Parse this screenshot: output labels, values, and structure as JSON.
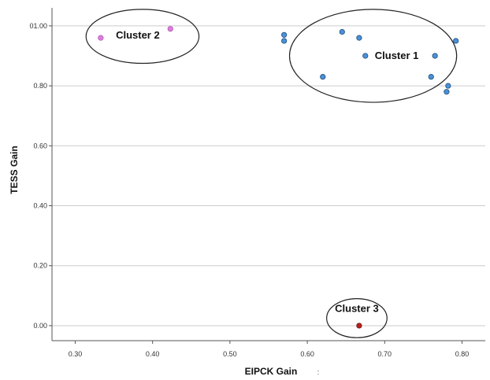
{
  "chart_data": {
    "type": "scatter",
    "title": "",
    "xlabel": "EIPCK Gain",
    "ylabel": "TESS Gain",
    "xlim": [
      0.27,
      0.83
    ],
    "ylim": [
      -0.05,
      1.06
    ],
    "x_ticks": [
      "0.30",
      "0.40",
      "0.50",
      "0.60",
      "0.70",
      "0.80"
    ],
    "y_ticks": [
      "0.00",
      "0.20",
      "0.40",
      "0.60",
      "0.80",
      "01.00"
    ],
    "grid": "horizontal",
    "stray_mark": ":",
    "series": [
      {
        "color": "#4a90d9",
        "stroke": "#1f4e79",
        "points": [
          {
            "x": 0.57,
            "y": 0.97
          },
          {
            "x": 0.57,
            "y": 0.95
          },
          {
            "x": 0.62,
            "y": 0.83
          },
          {
            "x": 0.645,
            "y": 0.98
          },
          {
            "x": 0.667,
            "y": 0.96
          },
          {
            "x": 0.675,
            "y": 0.9
          },
          {
            "x": 0.76,
            "y": 0.83
          },
          {
            "x": 0.765,
            "y": 0.9
          },
          {
            "x": 0.782,
            "y": 0.8
          },
          {
            "x": 0.78,
            "y": 0.78
          },
          {
            "x": 0.792,
            "y": 0.95
          }
        ]
      },
      {
        "color": "#e07be0",
        "stroke": "#b05ab0",
        "points": [
          {
            "x": 0.333,
            "y": 0.96
          },
          {
            "x": 0.423,
            "y": 0.99
          }
        ]
      },
      {
        "color": "#b22222",
        "stroke": "#7a1010",
        "points": [
          {
            "x": 0.667,
            "y": 0.0
          }
        ]
      }
    ],
    "annotations": [
      {
        "text": "Cluster 1",
        "cx": 0.685,
        "cy": 0.9,
        "rx": 0.108,
        "ry": 0.155
      },
      {
        "text": "Cluster 2",
        "cx": 0.387,
        "cy": 0.965,
        "rx": 0.073,
        "ry": 0.09
      },
      {
        "text": "Cluster 3",
        "cx": 0.664,
        "cy": 0.025,
        "rx": 0.039,
        "ry": 0.065
      }
    ]
  }
}
